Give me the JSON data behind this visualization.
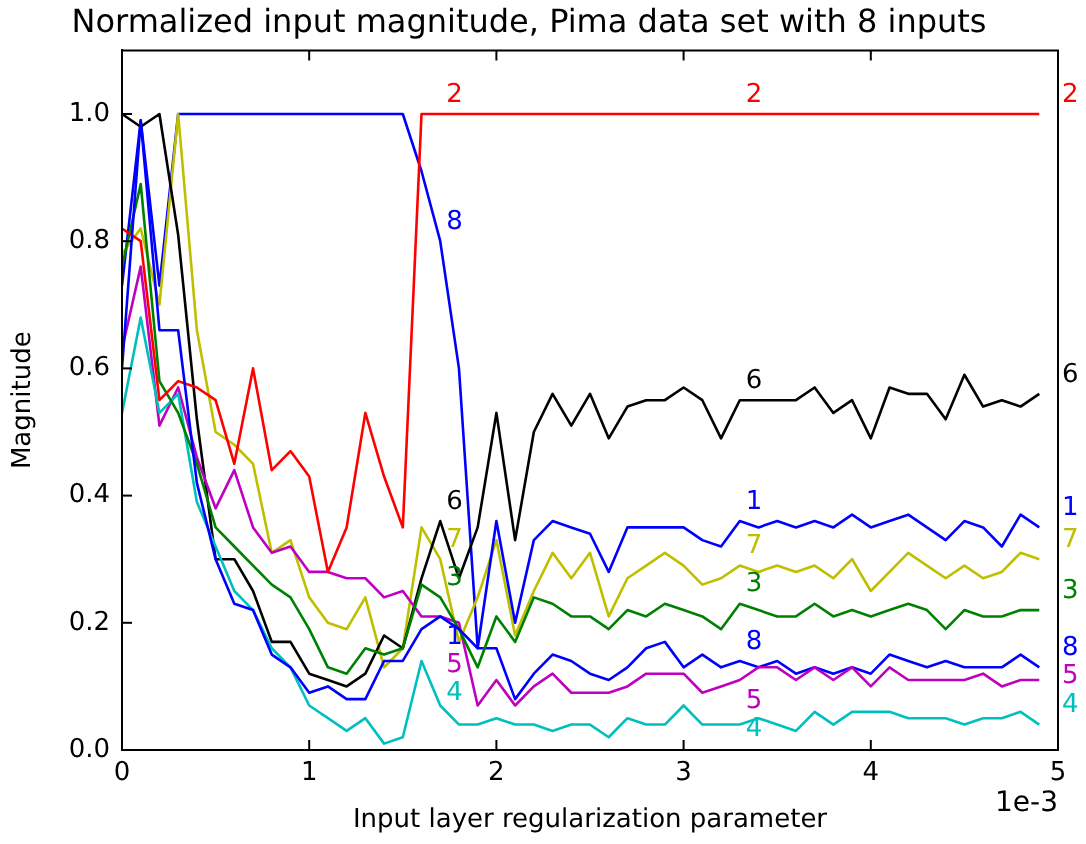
{
  "chart_data": {
    "type": "line",
    "title": "Normalized input magnitude, Pima data set with 8 inputs",
    "xlabel": "Input layer regularization parameter",
    "ylabel": "Magnitude",
    "x": [
      0,
      0.1,
      0.2,
      0.3,
      0.4,
      0.5,
      0.6,
      0.7,
      0.8,
      0.9,
      1.0,
      1.1,
      1.2,
      1.3,
      1.4,
      1.5,
      1.6,
      1.7,
      1.8,
      1.9,
      2.0,
      2.1,
      2.2,
      2.3,
      2.4,
      2.5,
      2.6,
      2.7,
      2.8,
      2.9,
      3.0,
      3.1,
      3.2,
      3.3,
      3.4,
      3.5,
      3.6,
      3.7,
      3.8,
      3.9,
      4.0,
      4.1,
      4.2,
      4.3,
      4.4,
      4.5,
      4.6,
      4.7,
      4.8,
      4.9
    ],
    "series": [
      {
        "name": "1",
        "color": "#0000ff",
        "values": [
          0.6,
          0.99,
          0.66,
          0.66,
          0.42,
          0.3,
          0.23,
          0.22,
          0.15,
          0.13,
          0.09,
          0.1,
          0.08,
          0.08,
          0.14,
          0.14,
          0.19,
          0.21,
          0.19,
          0.16,
          0.36,
          0.2,
          0.33,
          0.36,
          0.35,
          0.34,
          0.28,
          0.35,
          0.35,
          0.35,
          0.35,
          0.33,
          0.32,
          0.36,
          0.35,
          0.36,
          0.35,
          0.36,
          0.35,
          0.37,
          0.35,
          0.36,
          0.37,
          0.35,
          0.33,
          0.36,
          0.35,
          0.32,
          0.37,
          0.35
        ]
      },
      {
        "name": "2",
        "color": "#ff0000",
        "values": [
          0.82,
          0.8,
          0.55,
          0.58,
          0.57,
          0.55,
          0.45,
          0.6,
          0.44,
          0.47,
          0.43,
          0.28,
          0.35,
          0.53,
          0.43,
          0.35,
          1.0,
          1.0,
          1.0,
          1.0,
          1.0,
          1.0,
          1.0,
          1.0,
          1.0,
          1.0,
          1.0,
          1.0,
          1.0,
          1.0,
          1.0,
          1.0,
          1.0,
          1.0,
          1.0,
          1.0,
          1.0,
          1.0,
          1.0,
          1.0,
          1.0,
          1.0,
          1.0,
          1.0,
          1.0,
          1.0,
          1.0,
          1.0,
          1.0,
          1.0
        ]
      },
      {
        "name": "3",
        "color": "#008000",
        "values": [
          0.76,
          0.89,
          0.58,
          0.53,
          0.45,
          0.35,
          0.32,
          0.29,
          0.26,
          0.24,
          0.19,
          0.13,
          0.12,
          0.16,
          0.15,
          0.16,
          0.26,
          0.24,
          0.19,
          0.13,
          0.21,
          0.17,
          0.24,
          0.23,
          0.21,
          0.21,
          0.19,
          0.22,
          0.21,
          0.23,
          0.22,
          0.21,
          0.19,
          0.23,
          0.22,
          0.21,
          0.21,
          0.23,
          0.21,
          0.22,
          0.21,
          0.22,
          0.23,
          0.22,
          0.19,
          0.22,
          0.21,
          0.21,
          0.22,
          0.22
        ]
      },
      {
        "name": "4",
        "color": "#00bfbf",
        "values": [
          0.53,
          0.68,
          0.53,
          0.56,
          0.39,
          0.32,
          0.25,
          0.22,
          0.16,
          0.13,
          0.07,
          0.05,
          0.03,
          0.05,
          0.01,
          0.02,
          0.14,
          0.07,
          0.04,
          0.04,
          0.05,
          0.04,
          0.04,
          0.03,
          0.04,
          0.04,
          0.02,
          0.05,
          0.04,
          0.04,
          0.07,
          0.04,
          0.04,
          0.04,
          0.05,
          0.04,
          0.03,
          0.06,
          0.04,
          0.06,
          0.06,
          0.06,
          0.05,
          0.05,
          0.05,
          0.04,
          0.05,
          0.05,
          0.06,
          0.04
        ]
      },
      {
        "name": "5",
        "color": "#bf00bf",
        "values": [
          0.63,
          0.76,
          0.51,
          0.57,
          0.46,
          0.38,
          0.44,
          0.35,
          0.31,
          0.32,
          0.28,
          0.28,
          0.27,
          0.27,
          0.24,
          0.25,
          0.21,
          0.21,
          0.2,
          0.07,
          0.11,
          0.07,
          0.1,
          0.12,
          0.09,
          0.09,
          0.09,
          0.1,
          0.12,
          0.12,
          0.12,
          0.09,
          0.1,
          0.11,
          0.13,
          0.13,
          0.11,
          0.13,
          0.11,
          0.13,
          0.1,
          0.13,
          0.11,
          0.11,
          0.11,
          0.11,
          0.12,
          0.1,
          0.11,
          0.11
        ]
      },
      {
        "name": "6",
        "color": "#000000",
        "values": [
          1.0,
          0.98,
          1.0,
          0.81,
          0.52,
          0.3,
          0.3,
          0.25,
          0.17,
          0.17,
          0.12,
          0.11,
          0.1,
          0.12,
          0.18,
          0.16,
          0.27,
          0.36,
          0.27,
          0.35,
          0.53,
          0.33,
          0.5,
          0.56,
          0.51,
          0.56,
          0.49,
          0.54,
          0.55,
          0.55,
          0.57,
          0.55,
          0.49,
          0.55,
          0.55,
          0.55,
          0.55,
          0.57,
          0.53,
          0.55,
          0.49,
          0.57,
          0.56,
          0.56,
          0.52,
          0.59,
          0.54,
          0.55,
          0.54,
          0.56
        ]
      },
      {
        "name": "7",
        "color": "#bfbf00",
        "values": [
          0.78,
          0.82,
          0.7,
          1.0,
          0.66,
          0.5,
          0.48,
          0.45,
          0.31,
          0.33,
          0.24,
          0.2,
          0.19,
          0.24,
          0.13,
          0.16,
          0.35,
          0.3,
          0.17,
          0.24,
          0.33,
          0.18,
          0.25,
          0.31,
          0.27,
          0.31,
          0.21,
          0.27,
          0.29,
          0.31,
          0.29,
          0.26,
          0.27,
          0.29,
          0.28,
          0.29,
          0.28,
          0.29,
          0.27,
          0.3,
          0.25,
          0.28,
          0.31,
          0.29,
          0.27,
          0.29,
          0.27,
          0.28,
          0.31,
          0.3
        ]
      },
      {
        "name": "8",
        "color": "#0000ff",
        "values": [
          0.73,
          0.99,
          0.73,
          1.0,
          1.0,
          1.0,
          1.0,
          1.0,
          1.0,
          1.0,
          1.0,
          1.0,
          1.0,
          1.0,
          1.0,
          1.0,
          0.91,
          0.8,
          0.6,
          0.16,
          0.16,
          0.08,
          0.12,
          0.15,
          0.14,
          0.12,
          0.11,
          0.13,
          0.16,
          0.17,
          0.13,
          0.15,
          0.13,
          0.14,
          0.13,
          0.14,
          0.12,
          0.13,
          0.12,
          0.13,
          0.12,
          0.15,
          0.14,
          0.13,
          0.14,
          0.13,
          0.13,
          0.13,
          0.15,
          0.13
        ]
      }
    ],
    "xlim": [
      0,
      5
    ],
    "xticks": [
      0,
      1,
      2,
      3,
      4,
      5
    ],
    "ylim": [
      0,
      1.1
    ],
    "yticks": [
      {
        "value": 0,
        "label": "0.0"
      },
      0.2,
      0.4,
      0.6,
      0.8,
      {
        "value": 1,
        "label": "1.0"
      }
    ],
    "grid": false,
    "legend": false,
    "marker": "none",
    "line_style": "solid",
    "annotations": [
      "1e-3"
    ]
  }
}
